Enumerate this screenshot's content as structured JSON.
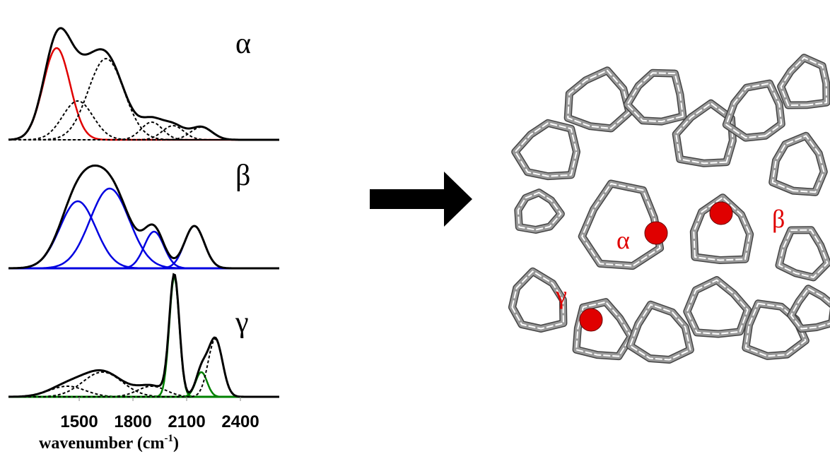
{
  "chart_data": {
    "type": "gaussian-fit",
    "xlim": [
      1105,
      2617
    ],
    "xticks": [
      1500,
      1800,
      2100,
      2400
    ],
    "xlabel": {
      "text": "wavenumber (cm",
      "sup": "-1",
      "close": ")"
    },
    "panels": [
      {
        "label": "α",
        "ylim": [
          0,
          180
        ],
        "total_color": "#000000",
        "axis_color": "#888888",
        "components": [
          {
            "center": 1374,
            "height": 130,
            "width": 75,
            "color": "#e00000",
            "style": "solid"
          },
          {
            "center": 1492,
            "height": 55,
            "width": 85,
            "color": "#000000",
            "style": "dashed"
          },
          {
            "center": 1650,
            "height": 115,
            "width": 100,
            "color": "#000000",
            "style": "dashed"
          },
          {
            "center": 1905,
            "height": 25,
            "width": 60,
            "color": "#000000",
            "style": "dashed"
          },
          {
            "center": 2024,
            "height": 20,
            "width": 60,
            "color": "#000000",
            "style": "dashed"
          },
          {
            "center": 2182,
            "height": 18,
            "width": 60,
            "color": "#000000",
            "style": "dashed"
          }
        ]
      },
      {
        "label": "β",
        "ylim": [
          0,
          180
        ],
        "total_color": "#000000",
        "axis_color": "#0000e0",
        "components": [
          {
            "center": 1492,
            "height": 95,
            "width": 100,
            "color": "#0000e0",
            "style": "solid"
          },
          {
            "center": 1670,
            "height": 113,
            "width": 110,
            "color": "#0000e0",
            "style": "solid"
          },
          {
            "center": 1918,
            "height": 52,
            "width": 55,
            "color": "#0000e0",
            "style": "solid"
          },
          {
            "center": 2143,
            "height": 60,
            "width": 55,
            "color": "#0000e0",
            "style": "solid"
          }
        ]
      },
      {
        "label": "γ",
        "ylim": [
          0,
          180
        ],
        "total_color": "#000000",
        "axis_color": "#008000",
        "components": [
          {
            "center": 1433,
            "height": 15,
            "width": 100,
            "color": "#000000",
            "style": "dashed"
          },
          {
            "center": 1630,
            "height": 35,
            "width": 110,
            "color": "#000000",
            "style": "dashed"
          },
          {
            "center": 1905,
            "height": 15,
            "width": 80,
            "color": "#000000",
            "style": "dashed"
          },
          {
            "center": 2031,
            "height": 170,
            "width": 28,
            "color": "#008000",
            "style": "solid"
          },
          {
            "center": 2182,
            "height": 35,
            "width": 32,
            "color": "#008000",
            "style": "solid"
          },
          {
            "center": 2260,
            "height": 82,
            "width": 40,
            "color": "#000000",
            "style": "dashed"
          }
        ]
      }
    ],
    "sites": [
      "α",
      "β",
      "γ"
    ]
  }
}
